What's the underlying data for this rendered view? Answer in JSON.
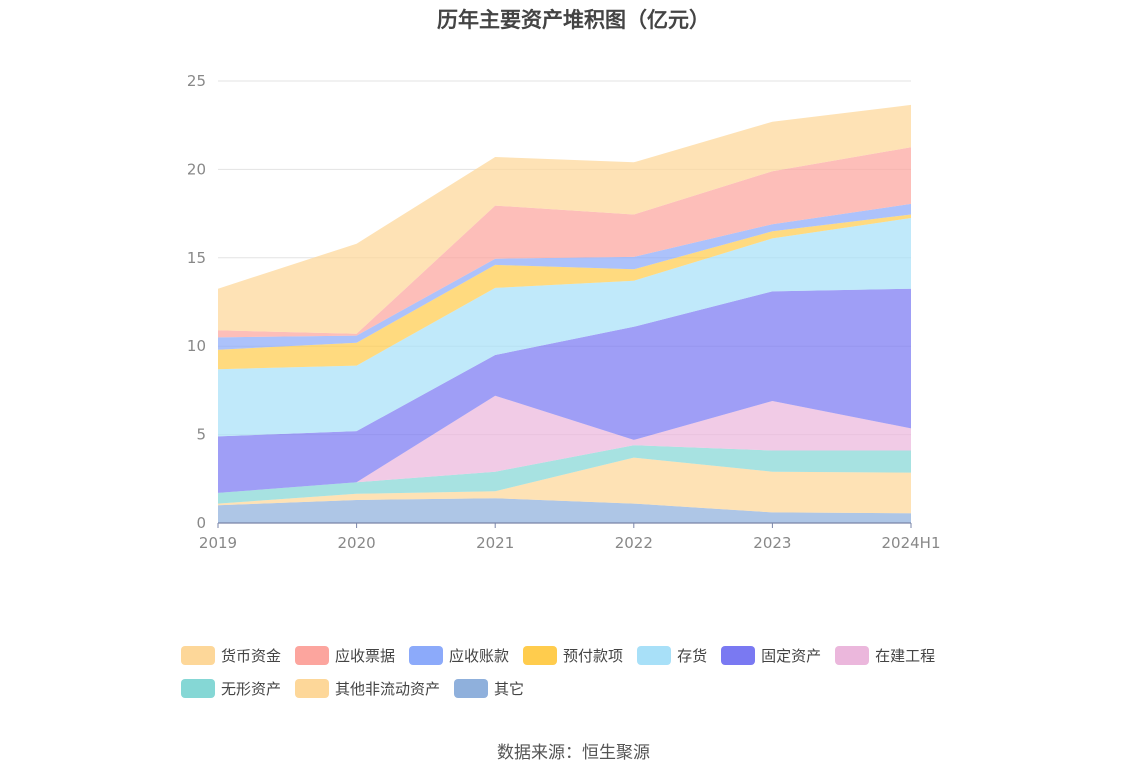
{
  "chart_data": {
    "type": "area",
    "stacked": true,
    "title": "历年主要资产堆积图（亿元）",
    "xlabel": "",
    "ylabel": "",
    "categories": [
      "2019",
      "2020",
      "2021",
      "2022",
      "2023",
      "2024H1"
    ],
    "ylim": [
      0,
      25
    ],
    "yticks": [
      0,
      5,
      10,
      15,
      20,
      25
    ],
    "grid": true,
    "legend_position": "bottom",
    "series": [
      {
        "name": "其它",
        "color": "#8fb0dc",
        "values": [
          1.0,
          1.3,
          1.4,
          1.1,
          0.6,
          0.55
        ]
      },
      {
        "name": "其他非流动资产",
        "color": "#fdd799",
        "values": [
          0.1,
          0.35,
          0.4,
          2.6,
          2.3,
          2.3
        ]
      },
      {
        "name": "无形资产",
        "color": "#85d7d5",
        "values": [
          0.6,
          0.65,
          1.1,
          0.7,
          1.2,
          1.25
        ]
      },
      {
        "name": "在建工程",
        "color": "#ebb7dc",
        "values": [
          0.0,
          0.0,
          4.3,
          0.3,
          2.8,
          1.25
        ]
      },
      {
        "name": "固定资产",
        "color": "#7a79f2",
        "values": [
          3.2,
          2.9,
          2.3,
          6.4,
          6.2,
          7.9
        ]
      },
      {
        "name": "存货",
        "color": "#a8e0f8",
        "values": [
          3.8,
          3.7,
          3.8,
          2.6,
          3.0,
          4.0
        ]
      },
      {
        "name": "预付款项",
        "color": "#ffcc4d",
        "values": [
          1.1,
          1.3,
          1.3,
          0.65,
          0.4,
          0.2
        ]
      },
      {
        "name": "应收账款",
        "color": "#8caafa",
        "values": [
          0.7,
          0.4,
          0.35,
          0.7,
          0.4,
          0.6
        ]
      },
      {
        "name": "应收票据",
        "color": "#fca59e",
        "values": [
          0.4,
          0.1,
          3.0,
          2.4,
          3.0,
          3.2
        ]
      },
      {
        "name": "货币资金",
        "color": "#fdd799",
        "values": [
          2.35,
          5.1,
          2.75,
          2.95,
          2.8,
          2.4
        ]
      }
    ]
  },
  "legend_order": [
    "货币资金",
    "应收票据",
    "应收账款",
    "预付款项",
    "存货",
    "固定资产",
    "在建工程",
    "无形资产",
    "其他非流动资产",
    "其它"
  ],
  "source": "数据来源：恒生聚源"
}
